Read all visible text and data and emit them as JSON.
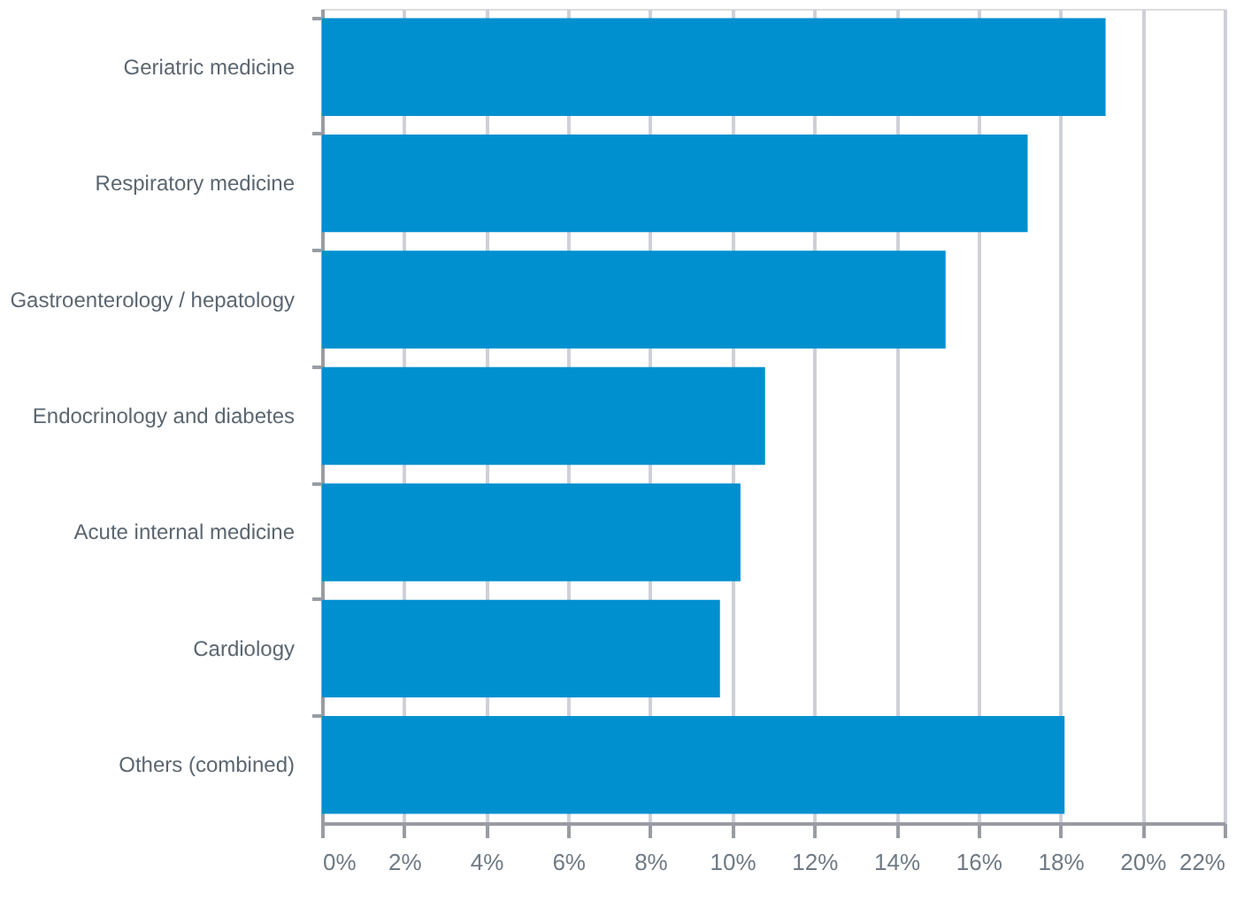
{
  "chart_data": {
    "type": "bar",
    "orientation": "horizontal",
    "categories": [
      "Geriatric medicine",
      "Respiratory medicine",
      "Gastroenterology / hepatology",
      "Endocrinology and diabetes",
      "Acute internal medicine",
      "Cardiology",
      "Others (combined)"
    ],
    "values": [
      19.1,
      17.2,
      15.2,
      10.8,
      10.2,
      9.7,
      18.1
    ],
    "color": "#0090d0",
    "xlim": [
      0,
      22
    ],
    "xticks": [
      {
        "value": 0,
        "label": "0%"
      },
      {
        "value": 2,
        "label": "2%"
      },
      {
        "value": 4,
        "label": "4%"
      },
      {
        "value": 6,
        "label": "6%"
      },
      {
        "value": 8,
        "label": "8%"
      },
      {
        "value": 10,
        "label": "10%"
      },
      {
        "value": 12,
        "label": "12%"
      },
      {
        "value": 14,
        "label": "14%"
      },
      {
        "value": 16,
        "label": "16%"
      },
      {
        "value": 18,
        "label": "18%"
      },
      {
        "value": 20,
        "label": "20%"
      },
      {
        "value": 22,
        "label": "22%"
      }
    ],
    "grid": "x"
  }
}
